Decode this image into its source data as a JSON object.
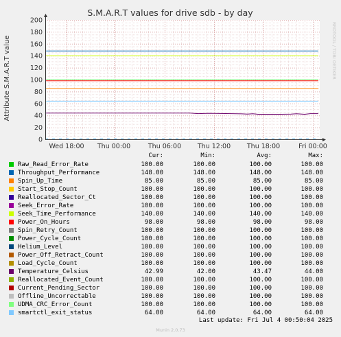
{
  "chart_data": {
    "type": "line",
    "title": "S.M.A.R.T values for drive sdb - by day",
    "ylabel": "Attribute S.M.A.R.T value",
    "xlabel": "",
    "ylim": [
      0,
      200
    ],
    "yticks": [
      0,
      20,
      40,
      60,
      80,
      100,
      120,
      140,
      160,
      180,
      200
    ],
    "xtick_labels": [
      "Wed 18:00",
      "Thu 00:00",
      "Thu 06:00",
      "Thu 12:00",
      "Thu 18:00",
      "Fri 00:00"
    ],
    "grid": true,
    "watermark": "RRDTOOL / TOBI OETIKER",
    "columns": [
      "Cur:",
      "Min:",
      "Avg:",
      "Max:"
    ],
    "series": [
      {
        "name": "Raw_Read_Error_Rate",
        "color": "#00cc00",
        "cur": "100.00",
        "min": "100.00",
        "avg": "100.00",
        "max": "100.00",
        "level": 100
      },
      {
        "name": "Throughput_Performance",
        "color": "#0066b3",
        "cur": "148.00",
        "min": "148.00",
        "avg": "148.00",
        "max": "148.00",
        "level": 148
      },
      {
        "name": "Spin_Up_Time",
        "color": "#ff8000",
        "cur": "85.00",
        "min": "85.00",
        "avg": "85.00",
        "max": "85.00",
        "level": 85
      },
      {
        "name": "Start_Stop_Count",
        "color": "#ffcc00",
        "cur": "100.00",
        "min": "100.00",
        "avg": "100.00",
        "max": "100.00",
        "level": 100
      },
      {
        "name": "Reallocated_Sector_Ct",
        "color": "#330099",
        "cur": "100.00",
        "min": "100.00",
        "avg": "100.00",
        "max": "100.00",
        "level": 100
      },
      {
        "name": "Seek_Error_Rate",
        "color": "#990099",
        "cur": "100.00",
        "min": "100.00",
        "avg": "100.00",
        "max": "100.00",
        "level": 100
      },
      {
        "name": "Seek_Time_Performance",
        "color": "#ccff00",
        "cur": "140.00",
        "min": "140.00",
        "avg": "140.00",
        "max": "140.00",
        "level": 140
      },
      {
        "name": "Power_On_Hours",
        "color": "#ff0000",
        "cur": "98.00",
        "min": "98.00",
        "avg": "98.00",
        "max": "98.00",
        "level": 98
      },
      {
        "name": "Spin_Retry_Count",
        "color": "#808080",
        "cur": "100.00",
        "min": "100.00",
        "avg": "100.00",
        "max": "100.00",
        "level": 100
      },
      {
        "name": "Power_Cycle_Count",
        "color": "#008f00",
        "cur": "100.00",
        "min": "100.00",
        "avg": "100.00",
        "max": "100.00",
        "level": 100
      },
      {
        "name": "Helium_Level",
        "color": "#00487d",
        "cur": "100.00",
        "min": "100.00",
        "avg": "100.00",
        "max": "100.00",
        "level": 100
      },
      {
        "name": "Power_Off_Retract_Count",
        "color": "#b35a00",
        "cur": "100.00",
        "min": "100.00",
        "avg": "100.00",
        "max": "100.00",
        "level": 100
      },
      {
        "name": "Load_Cycle_Count",
        "color": "#b38f00",
        "cur": "100.00",
        "min": "100.00",
        "avg": "100.00",
        "max": "100.00",
        "level": 100
      },
      {
        "name": "Temperature_Celsius",
        "color": "#6b006b",
        "cur": "42.99",
        "min": "42.00",
        "avg": "43.47",
        "max": "44.00",
        "level": 43.47
      },
      {
        "name": "Reallocated_Event_Count",
        "color": "#8fb300",
        "cur": "100.00",
        "min": "100.00",
        "avg": "100.00",
        "max": "100.00",
        "level": 100
      },
      {
        "name": "Current_Pending_Sector",
        "color": "#b30000",
        "cur": "100.00",
        "min": "100.00",
        "avg": "100.00",
        "max": "100.00",
        "level": 100
      },
      {
        "name": "Offline_Uncorrectable",
        "color": "#bebebe",
        "cur": "100.00",
        "min": "100.00",
        "avg": "100.00",
        "max": "100.00",
        "level": 100
      },
      {
        "name": "UDMA_CRC_Error_Count",
        "color": "#80ff80",
        "cur": "100.00",
        "min": "100.00",
        "avg": "100.00",
        "max": "100.00",
        "level": 100
      },
      {
        "name": "smartctl_exit_status",
        "color": "#80c9ff",
        "cur": "64.00",
        "min": "64.00",
        "avg": "64.00",
        "max": "64.00",
        "level": 64
      }
    ],
    "temperature_trace": [
      [
        0.0,
        44
      ],
      [
        0.3,
        44
      ],
      [
        0.53,
        44
      ],
      [
        0.56,
        43
      ],
      [
        0.6,
        43.6
      ],
      [
        0.64,
        43.2
      ],
      [
        0.68,
        43
      ],
      [
        0.72,
        42.6
      ],
      [
        0.74,
        42.2
      ],
      [
        0.76,
        42.8
      ],
      [
        0.78,
        42
      ],
      [
        0.86,
        42
      ],
      [
        0.9,
        42.3
      ],
      [
        0.92,
        42.8
      ],
      [
        0.95,
        42
      ],
      [
        0.97,
        43
      ],
      [
        1.0,
        43
      ]
    ]
  },
  "footer": {
    "last_update": "Last update: Fri Jul  4 00:50:04 2025",
    "munin_version": "Munin 2.0.73"
  }
}
